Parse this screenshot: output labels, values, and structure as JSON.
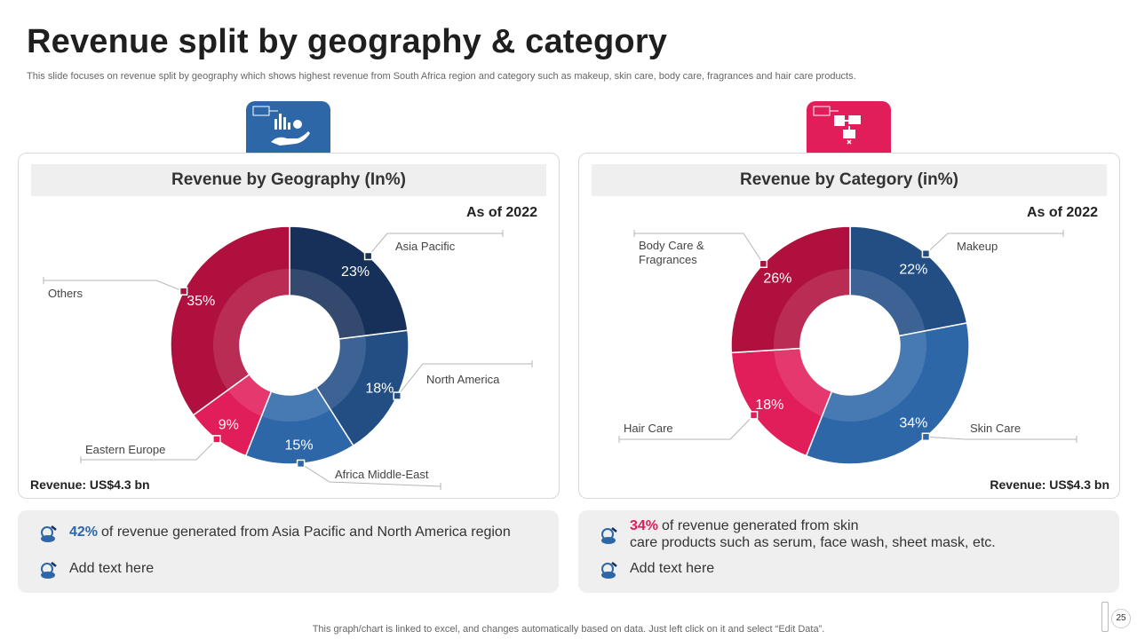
{
  "slide": {
    "title": "Revenue split by geography & category",
    "subtitle": "This slide focuses on revenue split by geography which shows highest revenue from South Africa region and category such as makeup, skin care, body care, fragrances and hair care products.",
    "footer": "This graph/chart is linked to excel, and changes automatically based on data. Just left click on it and select “Edit Data”.",
    "page_number": "25"
  },
  "left_panel": {
    "header": "Revenue by Geography (In%)",
    "as_of": "As of 2022",
    "revenue": "Revenue: US$4.3 bn"
  },
  "right_panel": {
    "header": "Revenue by Category (in%)",
    "as_of": "As of 2022",
    "revenue": "Revenue: US$4.3 bn"
  },
  "notes_left": [
    {
      "highlight": "42%",
      "text": "of revenue  generated from Asia Pacific and North America region"
    },
    {
      "highlight": "",
      "text": "Add text here"
    }
  ],
  "notes_right": [
    {
      "highlight": "34%",
      "text_line1": "of revenue  generated from skin",
      "text_line2": "care products such as serum, face wash, sheet mask, etc."
    },
    {
      "highlight": "",
      "text": "Add text here"
    }
  ],
  "colors": {
    "accent_blue": "#2e67a8",
    "accent_pink": "#e11d5a"
  },
  "chart_data": [
    {
      "type": "pie",
      "variant": "donut",
      "title": "Revenue by Geography (In%)",
      "categories": [
        "Asia Pacific",
        "North America",
        "Africa Middle-East",
        "Eastern Europe",
        "Others"
      ],
      "values": [
        23,
        18,
        15,
        9,
        35
      ],
      "value_labels": [
        "23%",
        "18%",
        "15%",
        "9%",
        "35%"
      ],
      "colors": [
        "#17305a",
        "#224e84",
        "#2e67a8",
        "#e11d5a",
        "#b0103e"
      ],
      "legend": "callout labels"
    },
    {
      "type": "pie",
      "variant": "donut",
      "title": "Revenue by Category (in%)",
      "categories": [
        "Makeup",
        "Skin Care",
        "Hair Care",
        "Body Care & Fragrances"
      ],
      "values": [
        22,
        34,
        18,
        26
      ],
      "value_labels": [
        "22%",
        "34%",
        "18%",
        "26%"
      ],
      "colors": [
        "#224e84",
        "#2e67a8",
        "#e11d5a",
        "#b0103e"
      ],
      "legend": "callout labels"
    }
  ]
}
